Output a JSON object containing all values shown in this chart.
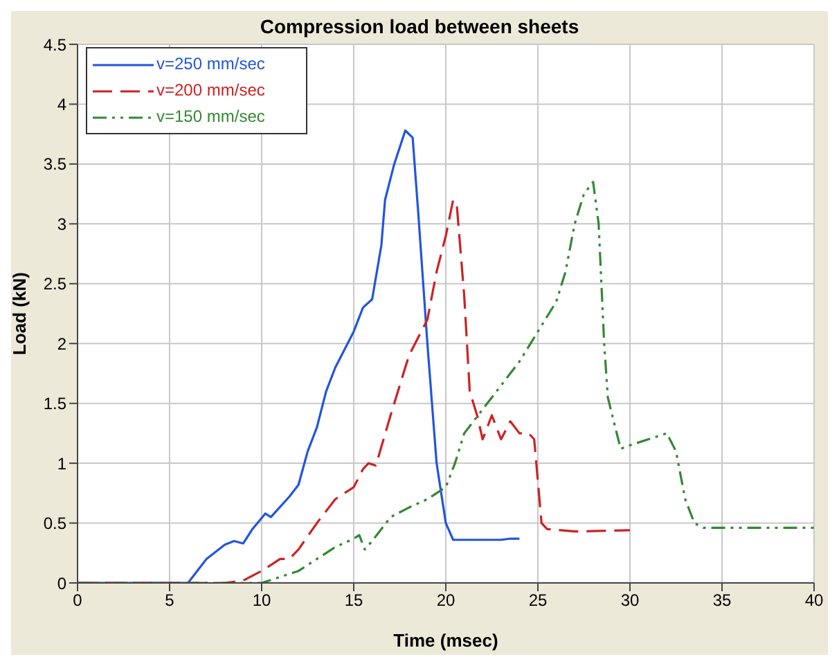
{
  "chart_data": {
    "type": "line",
    "title": "Compression load between sheets",
    "xlabel": "Time (msec)",
    "ylabel": "Load (kN)",
    "xlim": [
      0,
      40
    ],
    "xticks": [
      0,
      5,
      10,
      15,
      20,
      25,
      30,
      35,
      40
    ],
    "ylim": [
      0,
      4.5
    ],
    "yticks": [
      0,
      0.5,
      1,
      1.5,
      2,
      2.5,
      3,
      3.5,
      4,
      4.5
    ],
    "grid": true,
    "legend": "top left",
    "marker": "none",
    "series": [
      {
        "name": "v=250 mm/sec",
        "color": "#2255dd",
        "line_style": "solid",
        "x": [
          0,
          6,
          6.5,
          7,
          8,
          8.5,
          9,
          9.5,
          10.2,
          10.5,
          11.5,
          12,
          12.5,
          13,
          13.5,
          14,
          15,
          15.5,
          16,
          16.5,
          16.7,
          17.2,
          17.8,
          18.2,
          18.5,
          19,
          19.5,
          20,
          20.4,
          21,
          23,
          23.5,
          24
        ],
        "values": [
          0,
          0,
          0.1,
          0.2,
          0.32,
          0.35,
          0.33,
          0.45,
          0.58,
          0.55,
          0.72,
          0.82,
          1.1,
          1.3,
          1.6,
          1.8,
          2.1,
          2.3,
          2.37,
          2.82,
          3.2,
          3.5,
          3.78,
          3.72,
          3.1,
          2.0,
          1.0,
          0.5,
          0.36,
          0.36,
          0.36,
          0.37,
          0.37
        ]
      },
      {
        "name": "v=200 mm/sec",
        "color": "#cc2222",
        "line_style": "dashed",
        "x": [
          0,
          8,
          9,
          10,
          11,
          11.5,
          12,
          13,
          14,
          15,
          15.5,
          15.8,
          16.2,
          17,
          18,
          19,
          19.5,
          20,
          20.4,
          20.6,
          21,
          21.3,
          21.7,
          22,
          22.5,
          23,
          23.5,
          24,
          24.5,
          24.8,
          25.2,
          25.5,
          27,
          30
        ],
        "values": [
          0,
          0,
          0.02,
          0.1,
          0.2,
          0.2,
          0.28,
          0.5,
          0.7,
          0.8,
          0.95,
          1.0,
          0.98,
          1.4,
          1.9,
          2.2,
          2.6,
          2.9,
          3.2,
          3.15,
          2.4,
          1.6,
          1.4,
          1.2,
          1.4,
          1.2,
          1.35,
          1.25,
          1.25,
          1.2,
          0.5,
          0.45,
          0.43,
          0.44
        ]
      },
      {
        "name": "v=150 mm/sec",
        "color": "#338833",
        "line_style": "dashdot",
        "x": [
          0,
          10,
          11,
          12,
          13,
          14,
          15,
          15.3,
          15.6,
          16,
          17,
          18,
          19,
          20,
          20.5,
          21,
          22,
          23,
          24,
          25,
          26,
          26.5,
          27,
          27.5,
          28,
          28.3,
          28.6,
          28.8,
          29.2,
          29.5,
          30,
          31,
          32,
          32.5,
          33,
          33.5,
          34,
          40
        ],
        "values": [
          0,
          0,
          0.05,
          0.1,
          0.2,
          0.3,
          0.37,
          0.4,
          0.28,
          0.35,
          0.55,
          0.63,
          0.7,
          0.8,
          1.0,
          1.25,
          1.45,
          1.65,
          1.85,
          2.1,
          2.35,
          2.6,
          3.0,
          3.25,
          3.35,
          3.0,
          2.0,
          1.55,
          1.3,
          1.12,
          1.15,
          1.2,
          1.25,
          1.1,
          0.7,
          0.5,
          0.46,
          0.46
        ]
      }
    ]
  }
}
